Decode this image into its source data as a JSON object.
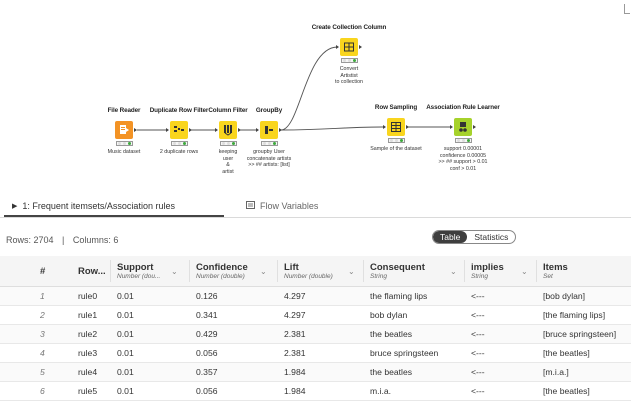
{
  "workflow": {
    "nodes": [
      {
        "id": "file-reader",
        "title": "File Reader",
        "label": "Music dataset",
        "color": "#f39325",
        "icon": "file-reader-icon"
      },
      {
        "id": "duplicate-row-filter",
        "title": "Duplicate Row Filter",
        "label": "2 duplicate rows",
        "color": "#f9d51e",
        "icon": "duplicate-filter-icon"
      },
      {
        "id": "column-filter",
        "title": "Column Filter",
        "label": "keeping\nuser\n&\nartist",
        "color": "#f9d51e",
        "icon": "column-filter-icon"
      },
      {
        "id": "groupby",
        "title": "GroupBy",
        "label": "groupby User\nconcatenate artists\n>> ## artists: [list]",
        "color": "#f9d51e",
        "icon": "groupby-icon"
      },
      {
        "id": "create-collection-column",
        "title": "Create Collection Column",
        "label": "Convert\nArtistist\nto collection",
        "color": "#f9d51e",
        "icon": "collection-icon"
      },
      {
        "id": "row-sampling",
        "title": "Row Sampling",
        "label": "Sample of the dataset",
        "color": "#f9d51e",
        "icon": "sampling-icon"
      },
      {
        "id": "association-rule-learner",
        "title": "Association Rule Learner",
        "label": "support 0.00001\nconfidence 0.00005\n>> ## support > 0.01\nconf > 0.01",
        "color": "#a6d22b",
        "icon": "association-icon"
      }
    ]
  },
  "tabs": [
    {
      "label": "1: Frequent itemsets/Association rules",
      "icon": "play-icon",
      "active": true
    },
    {
      "label": "Flow Variables",
      "icon": "flow-variables-icon",
      "active": false
    }
  ],
  "info": {
    "rows_text": "Rows: 2704",
    "divider": "|",
    "columns_text": "Columns: 6"
  },
  "view_toggle": {
    "table": "Table",
    "statistics": "Statistics",
    "selected": "Table"
  },
  "table": {
    "columns": [
      {
        "name": "#",
        "type": ""
      },
      {
        "name": "Row...",
        "type": ""
      },
      {
        "name": "Support",
        "type": "Number (dou..."
      },
      {
        "name": "Confidence",
        "type": "Number (double)"
      },
      {
        "name": "Lift",
        "type": "Number (double)"
      },
      {
        "name": "Consequent",
        "type": "String"
      },
      {
        "name": "implies",
        "type": "String"
      },
      {
        "name": "Items",
        "type": "Set"
      }
    ],
    "rows": [
      [
        "1",
        "rule0",
        "0.01",
        "0.126",
        "4.297",
        "the flaming lips",
        "<---",
        "[bob dylan]"
      ],
      [
        "2",
        "rule1",
        "0.01",
        "0.341",
        "4.297",
        "bob dylan",
        "<---",
        "[the flaming lips]"
      ],
      [
        "3",
        "rule2",
        "0.01",
        "0.429",
        "2.381",
        "the beatles",
        "<---",
        "[bruce springsteen]"
      ],
      [
        "4",
        "rule3",
        "0.01",
        "0.056",
        "2.381",
        "bruce springsteen",
        "<---",
        "[the beatles]"
      ],
      [
        "5",
        "rule4",
        "0.01",
        "0.357",
        "1.984",
        "the beatles",
        "<---",
        "[m.i.a.]"
      ],
      [
        "6",
        "rule5",
        "0.01",
        "0.056",
        "1.984",
        "m.i.a.",
        "<---",
        "[the beatles]"
      ]
    ]
  }
}
